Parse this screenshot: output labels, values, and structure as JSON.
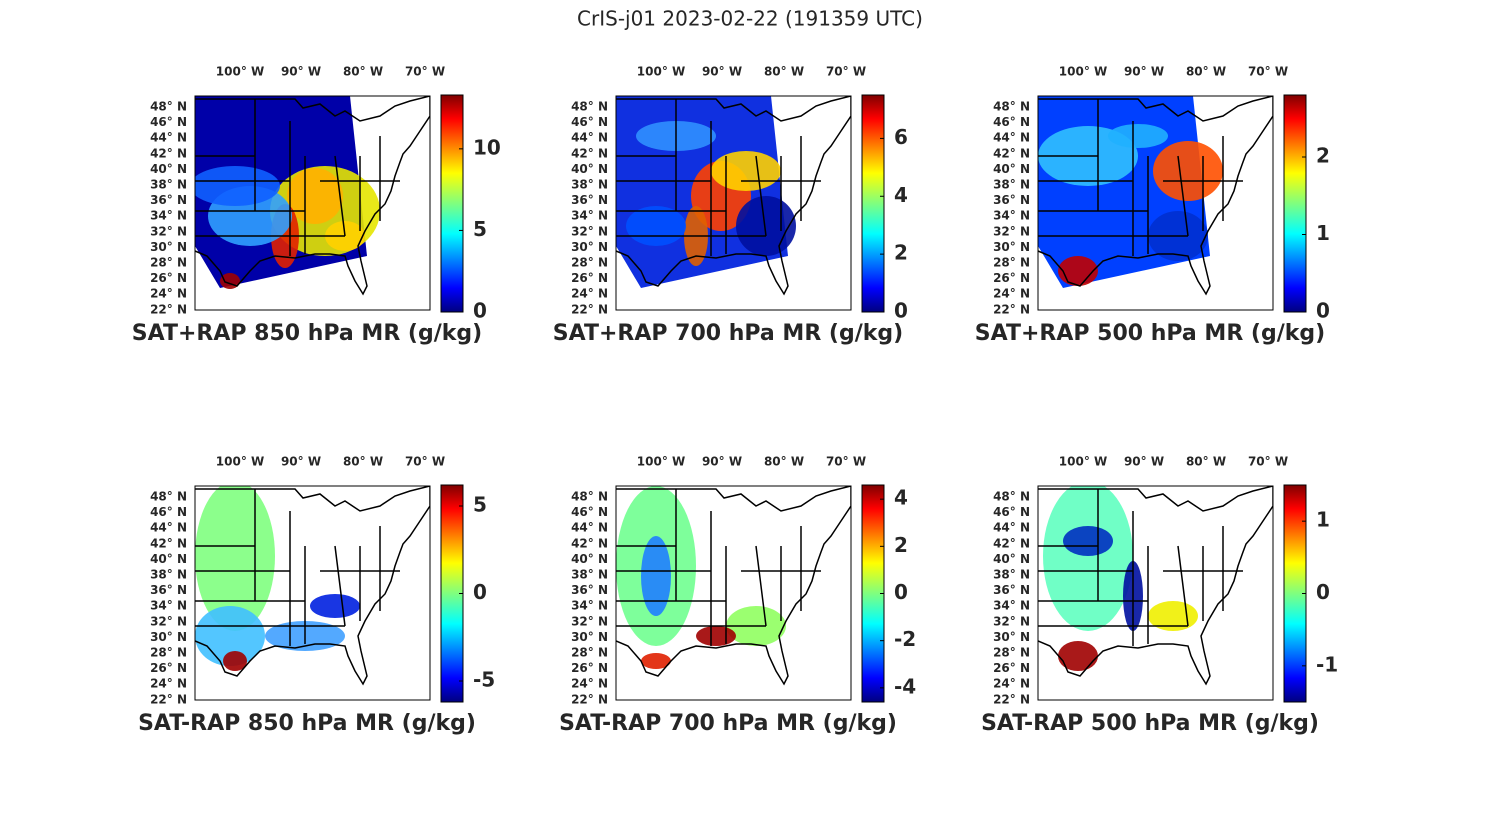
{
  "title": "CrIS-j01 2023-02-22 (191359 UTC)",
  "lon_labels": [
    "100° W",
    "90° W",
    "80° W",
    "70° W"
  ],
  "lat_labels": [
    "48° N",
    "46° N",
    "44° N",
    "42° N",
    "40° N",
    "38° N",
    "36° N",
    "34° N",
    "32° N",
    "30° N",
    "28° N",
    "26° N",
    "24° N",
    "22° N"
  ],
  "panels": [
    {
      "title": "SAT+RAP 850 hPa MR (g/kg)",
      "colorbar": {
        "lim": [
          0,
          13.3
        ],
        "ticks": [
          0,
          5,
          10
        ]
      }
    },
    {
      "title": "SAT+RAP 700 hPa MR (g/kg)",
      "colorbar": {
        "lim": [
          0,
          7.5
        ],
        "ticks": [
          0,
          2,
          4,
          6
        ]
      }
    },
    {
      "title": "SAT+RAP 500 hPa MR (g/kg)",
      "colorbar": {
        "lim": [
          0,
          2.8
        ],
        "ticks": [
          0,
          1,
          2
        ]
      }
    },
    {
      "title": "SAT-RAP 850 hPa MR (g/kg)",
      "colorbar": {
        "lim": [
          -6.2,
          6.2
        ],
        "ticks": [
          -5,
          0,
          5
        ]
      }
    },
    {
      "title": "SAT-RAP 700 hPa MR (g/kg)",
      "colorbar": {
        "lim": [
          -4.6,
          4.6
        ],
        "ticks": [
          -4,
          -2,
          0,
          2,
          4
        ]
      }
    },
    {
      "title": "SAT-RAP 500 hPa MR (g/kg)",
      "colorbar": {
        "lim": [
          -1.5,
          1.5
        ],
        "ticks": [
          -1,
          0,
          1
        ]
      }
    }
  ]
}
